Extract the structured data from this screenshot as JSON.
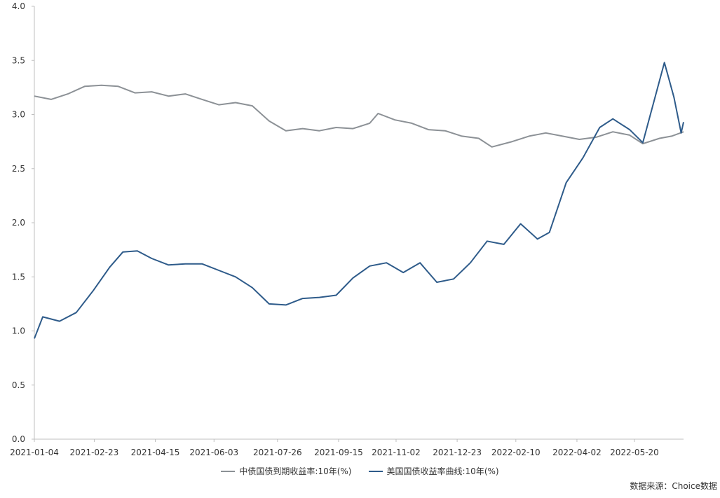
{
  "chart_data": {
    "type": "line",
    "ylim": [
      0,
      4.0
    ],
    "y_ticks": [
      "0.0",
      "0.5",
      "1.0",
      "1.5",
      "2.0",
      "2.5",
      "3.0",
      "3.5",
      "4.0"
    ],
    "x_ticks": [
      "2021-01-04",
      "2021-02-23",
      "2021-04-15",
      "2021-06-03",
      "2021-07-26",
      "2021-09-15",
      "2021-11-02",
      "2021-12-23",
      "2022-02-10",
      "2022-04-02",
      "2022-05-20"
    ],
    "x_range": [
      "2021-01-04",
      "2022-06-30"
    ],
    "grid": false,
    "legend_position": "bottom",
    "series": [
      {
        "name": "中债国债到期收益率:10年(%)",
        "color": "#8c9196",
        "points": [
          [
            "2021-01-04",
            3.17
          ],
          [
            "2021-01-18",
            3.14
          ],
          [
            "2021-02-01",
            3.19
          ],
          [
            "2021-02-15",
            3.26
          ],
          [
            "2021-03-01",
            3.27
          ],
          [
            "2021-03-15",
            3.26
          ],
          [
            "2021-03-29",
            3.2
          ],
          [
            "2021-04-12",
            3.21
          ],
          [
            "2021-04-26",
            3.17
          ],
          [
            "2021-05-10",
            3.19
          ],
          [
            "2021-05-24",
            3.14
          ],
          [
            "2021-06-07",
            3.09
          ],
          [
            "2021-06-21",
            3.11
          ],
          [
            "2021-07-05",
            3.08
          ],
          [
            "2021-07-19",
            2.94
          ],
          [
            "2021-08-02",
            2.85
          ],
          [
            "2021-08-16",
            2.87
          ],
          [
            "2021-08-30",
            2.85
          ],
          [
            "2021-09-13",
            2.88
          ],
          [
            "2021-09-27",
            2.87
          ],
          [
            "2021-10-11",
            2.92
          ],
          [
            "2021-10-18",
            3.01
          ],
          [
            "2021-11-01",
            2.95
          ],
          [
            "2021-11-15",
            2.92
          ],
          [
            "2021-11-29",
            2.86
          ],
          [
            "2021-12-13",
            2.85
          ],
          [
            "2021-12-27",
            2.8
          ],
          [
            "2022-01-10",
            2.78
          ],
          [
            "2022-01-21",
            2.7
          ],
          [
            "2022-02-07",
            2.75
          ],
          [
            "2022-02-21",
            2.8
          ],
          [
            "2022-03-07",
            2.83
          ],
          [
            "2022-03-21",
            2.8
          ],
          [
            "2022-04-04",
            2.77
          ],
          [
            "2022-04-18",
            2.79
          ],
          [
            "2022-05-02",
            2.84
          ],
          [
            "2022-05-16",
            2.81
          ],
          [
            "2022-05-27",
            2.73
          ],
          [
            "2022-06-10",
            2.78
          ],
          [
            "2022-06-20",
            2.8
          ],
          [
            "2022-06-30",
            2.84
          ]
        ]
      },
      {
        "name": "美国国债收益率曲线:10年(%)",
        "color": "#2e5b8a",
        "points": [
          [
            "2021-01-04",
            0.93
          ],
          [
            "2021-01-11",
            1.13
          ],
          [
            "2021-01-25",
            1.09
          ],
          [
            "2021-02-08",
            1.17
          ],
          [
            "2021-02-22",
            1.37
          ],
          [
            "2021-03-08",
            1.59
          ],
          [
            "2021-03-19",
            1.73
          ],
          [
            "2021-03-31",
            1.74
          ],
          [
            "2021-04-12",
            1.67
          ],
          [
            "2021-04-26",
            1.61
          ],
          [
            "2021-05-10",
            1.62
          ],
          [
            "2021-05-24",
            1.62
          ],
          [
            "2021-06-07",
            1.56
          ],
          [
            "2021-06-21",
            1.5
          ],
          [
            "2021-07-05",
            1.4
          ],
          [
            "2021-07-19",
            1.25
          ],
          [
            "2021-08-02",
            1.24
          ],
          [
            "2021-08-16",
            1.3
          ],
          [
            "2021-08-30",
            1.31
          ],
          [
            "2021-09-13",
            1.33
          ],
          [
            "2021-09-27",
            1.49
          ],
          [
            "2021-10-11",
            1.6
          ],
          [
            "2021-10-25",
            1.63
          ],
          [
            "2021-11-08",
            1.54
          ],
          [
            "2021-11-22",
            1.63
          ],
          [
            "2021-12-06",
            1.45
          ],
          [
            "2021-12-20",
            1.48
          ],
          [
            "2022-01-03",
            1.63
          ],
          [
            "2022-01-17",
            1.83
          ],
          [
            "2022-01-31",
            1.8
          ],
          [
            "2022-02-14",
            1.99
          ],
          [
            "2022-02-28",
            1.85
          ],
          [
            "2022-03-10",
            1.91
          ],
          [
            "2022-03-24",
            2.37
          ],
          [
            "2022-04-07",
            2.6
          ],
          [
            "2022-04-21",
            2.88
          ],
          [
            "2022-05-02",
            2.96
          ],
          [
            "2022-05-16",
            2.86
          ],
          [
            "2022-05-27",
            2.74
          ],
          [
            "2022-06-14",
            3.48
          ],
          [
            "2022-06-22",
            3.16
          ],
          [
            "2022-06-28",
            2.83
          ],
          [
            "2022-06-30",
            2.93
          ]
        ]
      }
    ]
  },
  "source_text": "数据来源：Choice数据"
}
